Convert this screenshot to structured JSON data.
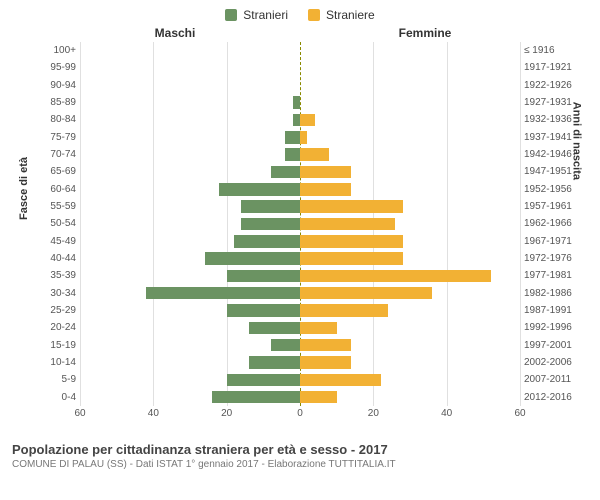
{
  "chart": {
    "type": "population-pyramid",
    "legend": [
      {
        "label": "Stranieri",
        "color": "#6b9362"
      },
      {
        "label": "Straniere",
        "color": "#f2b134"
      }
    ],
    "gender_left": "Maschi",
    "gender_right": "Femmine",
    "y_axis_left_title": "Fasce di età",
    "y_axis_right_title": "Anni di nascita",
    "x_max": 60,
    "x_ticks": [
      60,
      40,
      20,
      0,
      20,
      40,
      60
    ],
    "grid_color": "#e0e0e0",
    "center_line_color": "#8a8a00",
    "bar_color_left": "#6b9362",
    "bar_color_right": "#f2b134",
    "background_color": "#ffffff",
    "label_fontsize": 10,
    "rows": [
      {
        "age": "100+",
        "birth": "≤ 1916",
        "m": 0,
        "f": 0
      },
      {
        "age": "95-99",
        "birth": "1917-1921",
        "m": 0,
        "f": 0
      },
      {
        "age": "90-94",
        "birth": "1922-1926",
        "m": 0,
        "f": 0
      },
      {
        "age": "85-89",
        "birth": "1927-1931",
        "m": 2,
        "f": 0
      },
      {
        "age": "80-84",
        "birth": "1932-1936",
        "m": 2,
        "f": 4
      },
      {
        "age": "75-79",
        "birth": "1937-1941",
        "m": 4,
        "f": 2
      },
      {
        "age": "70-74",
        "birth": "1942-1946",
        "m": 4,
        "f": 8
      },
      {
        "age": "65-69",
        "birth": "1947-1951",
        "m": 8,
        "f": 14
      },
      {
        "age": "60-64",
        "birth": "1952-1956",
        "m": 22,
        "f": 14
      },
      {
        "age": "55-59",
        "birth": "1957-1961",
        "m": 16,
        "f": 28
      },
      {
        "age": "50-54",
        "birth": "1962-1966",
        "m": 16,
        "f": 26
      },
      {
        "age": "45-49",
        "birth": "1967-1971",
        "m": 18,
        "f": 28
      },
      {
        "age": "40-44",
        "birth": "1972-1976",
        "m": 26,
        "f": 28
      },
      {
        "age": "35-39",
        "birth": "1977-1981",
        "m": 20,
        "f": 52
      },
      {
        "age": "30-34",
        "birth": "1982-1986",
        "m": 42,
        "f": 36
      },
      {
        "age": "25-29",
        "birth": "1987-1991",
        "m": 20,
        "f": 24
      },
      {
        "age": "20-24",
        "birth": "1992-1996",
        "m": 14,
        "f": 10
      },
      {
        "age": "15-19",
        "birth": "1997-2001",
        "m": 8,
        "f": 14
      },
      {
        "age": "10-14",
        "birth": "2002-2006",
        "m": 14,
        "f": 14
      },
      {
        "age": "5-9",
        "birth": "2007-2011",
        "m": 20,
        "f": 22
      },
      {
        "age": "0-4",
        "birth": "2012-2016",
        "m": 24,
        "f": 10
      }
    ]
  },
  "footer": {
    "title": "Popolazione per cittadinanza straniera per età e sesso - 2017",
    "subtitle": "COMUNE DI PALAU (SS) - Dati ISTAT 1° gennaio 2017 - Elaborazione TUTTITALIA.IT"
  }
}
